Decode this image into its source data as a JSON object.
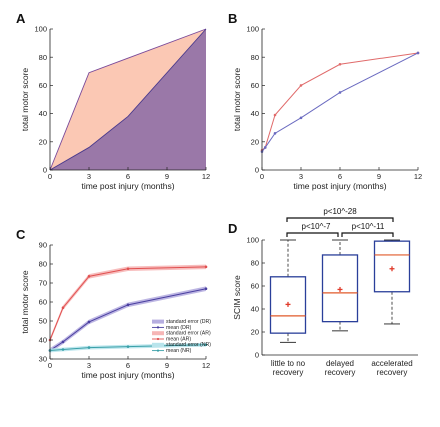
{
  "chart_data": [
    {
      "panel": "A",
      "type": "area",
      "xlabel": "time post injury (months)",
      "ylabel": "total motor score",
      "xlim": [
        0,
        12
      ],
      "ylim": [
        0,
        100
      ],
      "xticks": [
        0,
        3,
        6,
        9,
        12
      ],
      "yticks": [
        0,
        20,
        40,
        60,
        80,
        100
      ],
      "series": [
        {
          "x": [
            0,
            3,
            12
          ],
          "values": [
            0,
            69,
            100
          ],
          "color": "#fbc8b4",
          "stroke": "#7a4a9a"
        },
        {
          "x": [
            0,
            3,
            6,
            12
          ],
          "values": [
            0,
            16,
            38,
            100
          ],
          "color": "#9a78a8",
          "stroke": "#4a3a8c"
        }
      ]
    },
    {
      "panel": "B",
      "type": "line",
      "xlabel": "time post injury (months)",
      "ylabel": "total motor score",
      "xlim": [
        0,
        12
      ],
      "ylim": [
        0,
        100
      ],
      "xticks": [
        0,
        3,
        6,
        9,
        12
      ],
      "yticks": [
        0,
        20,
        40,
        60,
        80,
        100
      ],
      "series": [
        {
          "x": [
            0,
            0.25,
            1,
            3,
            6,
            12
          ],
          "values": [
            14,
            16,
            39,
            60,
            75,
            83
          ],
          "color": "#e06a6a"
        },
        {
          "x": [
            0,
            0.25,
            1,
            3,
            6,
            12
          ],
          "values": [
            13,
            16,
            26,
            37,
            55,
            83
          ],
          "color": "#6a6ac0"
        }
      ]
    },
    {
      "panel": "C",
      "type": "line",
      "xlabel": "time post injury (months)",
      "ylabel": "total motor score",
      "xlim": [
        0,
        12
      ],
      "ylim": [
        30,
        90
      ],
      "xticks": [
        0,
        3,
        6,
        9,
        12
      ],
      "yticks": [
        30,
        40,
        50,
        60,
        70,
        80,
        90
      ],
      "legend": [
        "standard error (DR)",
        "mean (DR)",
        "standard error (AR)",
        "mean (AR)",
        "standard error (NR)",
        "mean (NR)"
      ],
      "series": [
        {
          "name": "mean (AR)",
          "x": [
            0,
            1,
            3,
            6,
            12
          ],
          "values": [
            40,
            57,
            73.5,
            77.5,
            78.5
          ],
          "se": 1.2,
          "color": "#e05050",
          "band": "#f6b6b6"
        },
        {
          "name": "mean (DR)",
          "x": [
            0,
            1,
            3,
            6,
            12
          ],
          "values": [
            34.5,
            39,
            49.5,
            58.5,
            67
          ],
          "se": 1.2,
          "color": "#4a3fa0",
          "band": "#b6aee0"
        },
        {
          "name": "mean (NR)",
          "x": [
            0,
            1,
            3,
            6,
            12
          ],
          "values": [
            34.5,
            35,
            36,
            36.5,
            37.5
          ],
          "se": 1.0,
          "color": "#3aa0a8",
          "band": "#b8e4ec"
        }
      ]
    },
    {
      "panel": "D",
      "type": "box",
      "ylabel": "SCIM score",
      "ylim": [
        0,
        100
      ],
      "yticks": [
        0,
        20,
        40,
        60,
        80,
        100
      ],
      "categories": [
        "little to no recovery",
        "delayed recovery",
        "accelerated recovery"
      ],
      "boxes": [
        {
          "whisker_low": 11,
          "q1": 19,
          "median": 34,
          "q3": 68,
          "whisker_high": 100,
          "mean": 44
        },
        {
          "whisker_low": 21,
          "q1": 29,
          "median": 54,
          "q3": 87,
          "whisker_high": 100,
          "mean": 57
        },
        {
          "whisker_low": 27,
          "q1": 55,
          "median": 87,
          "q3": 99,
          "whisker_high": 100,
          "mean": 75
        }
      ],
      "annotations": [
        "p<10^-7",
        "p<10^-11",
        "p<10^-28"
      ]
    }
  ]
}
